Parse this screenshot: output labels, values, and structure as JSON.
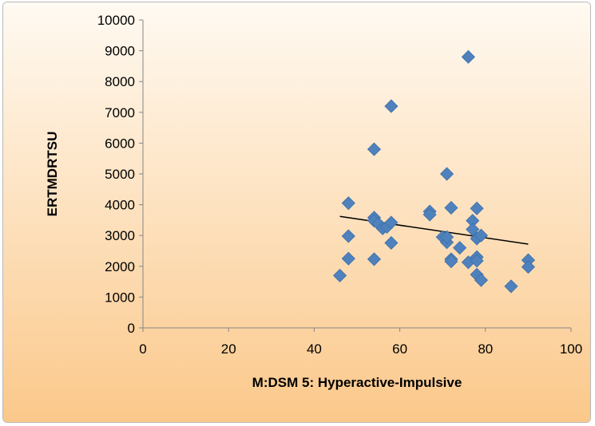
{
  "chart_data": {
    "type": "scatter",
    "title": "",
    "xlabel": "M:DSM 5: Hyperactive-Impulsive",
    "ylabel": "ERTMDRTSU",
    "xlim": [
      0,
      100
    ],
    "ylim": [
      0,
      10000
    ],
    "xticks": [
      0,
      20,
      40,
      60,
      80,
      100
    ],
    "yticks": [
      0,
      1000,
      2000,
      3000,
      4000,
      5000,
      6000,
      7000,
      8000,
      9000,
      10000
    ],
    "grid": false,
    "legend": "none",
    "marker": "diamond",
    "marker_color": "#4f81bd",
    "background_gradient": [
      "#fffaf2",
      "#fbc88a"
    ],
    "points": [
      {
        "x": 46,
        "y": 1700
      },
      {
        "x": 48,
        "y": 4050
      },
      {
        "x": 48,
        "y": 2980
      },
      {
        "x": 48,
        "y": 2250
      },
      {
        "x": 54,
        "y": 5800
      },
      {
        "x": 54,
        "y": 3580
      },
      {
        "x": 54,
        "y": 3480
      },
      {
        "x": 54,
        "y": 2230
      },
      {
        "x": 55,
        "y": 3380
      },
      {
        "x": 56,
        "y": 3230
      },
      {
        "x": 57,
        "y": 3280
      },
      {
        "x": 58,
        "y": 7200
      },
      {
        "x": 58,
        "y": 3420
      },
      {
        "x": 58,
        "y": 2760
      },
      {
        "x": 67,
        "y": 3780
      },
      {
        "x": 67,
        "y": 3680
      },
      {
        "x": 70,
        "y": 2950
      },
      {
        "x": 71,
        "y": 5000
      },
      {
        "x": 71,
        "y": 2780
      },
      {
        "x": 71,
        "y": 2950
      },
      {
        "x": 72,
        "y": 3900
      },
      {
        "x": 72,
        "y": 2230
      },
      {
        "x": 72,
        "y": 2160
      },
      {
        "x": 74,
        "y": 2600
      },
      {
        "x": 76,
        "y": 8800
      },
      {
        "x": 76,
        "y": 2130
      },
      {
        "x": 77,
        "y": 3480
      },
      {
        "x": 77,
        "y": 3200
      },
      {
        "x": 78,
        "y": 3880
      },
      {
        "x": 78,
        "y": 2900
      },
      {
        "x": 78,
        "y": 2300
      },
      {
        "x": 78,
        "y": 2180
      },
      {
        "x": 78,
        "y": 1730
      },
      {
        "x": 79,
        "y": 3000
      },
      {
        "x": 79,
        "y": 1550
      },
      {
        "x": 86,
        "y": 1350
      },
      {
        "x": 90,
        "y": 2200
      },
      {
        "x": 90,
        "y": 1980
      }
    ],
    "trendline": {
      "x": [
        46,
        90
      ],
      "y": [
        3620,
        2720
      ],
      "color": "#000000"
    }
  }
}
